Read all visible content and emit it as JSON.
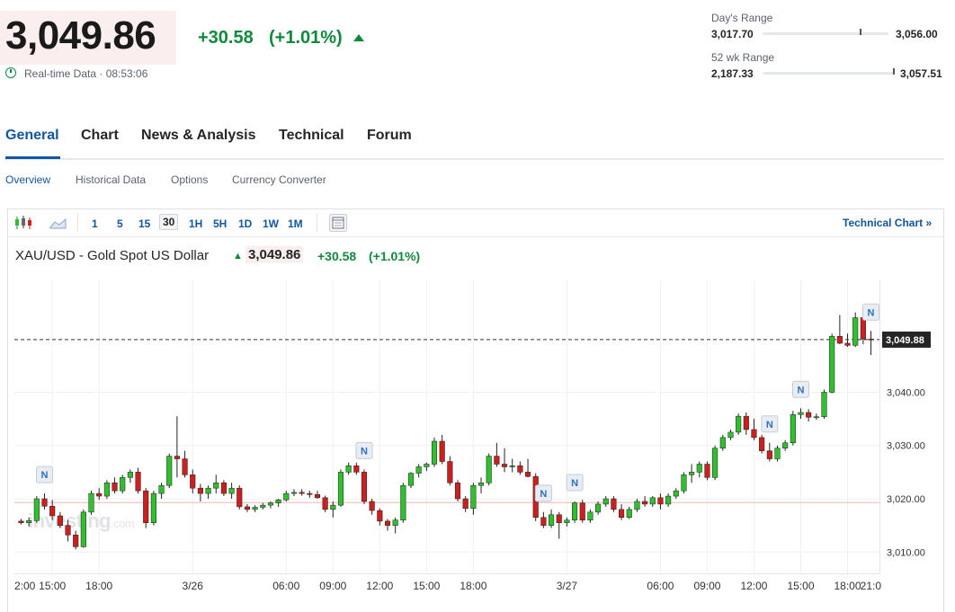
{
  "quote": {
    "price": "3,049.86",
    "change": "+30.58",
    "change_pct": "(+1.01%)",
    "realtime_label": "Real-time Data · 08:53:06",
    "days_range_label": "Day's Range",
    "days_low": "3,017.70",
    "days_high": "3,056.00",
    "days_position": 0.77,
    "wk52_label": "52 wk Range",
    "wk52_low": "2,187.33",
    "wk52_high": "3,057.51",
    "wk52_position": 0.99
  },
  "tabs": [
    "General",
    "Chart",
    "News & Analysis",
    "Technical",
    "Forum"
  ],
  "subtabs": [
    "Overview",
    "Historical Data",
    "Options",
    "Currency Converter"
  ],
  "toolbar": {
    "intervals": [
      "1",
      "5",
      "15",
      "30",
      "1H",
      "5H",
      "1D",
      "1W",
      "1M"
    ],
    "selected": "30",
    "technical_chart_link": "Technical Chart »",
    "icons": [
      "candlestick-icon",
      "area-chart-icon",
      "calendar-icon"
    ]
  },
  "chart_header": {
    "title": "XAU/USD - Gold Spot US Dollar",
    "price": "3,049.86",
    "change": "+30.58",
    "change_pct": "(+1.01%)"
  },
  "watermark": {
    "brand": "investing",
    "suffix": ".com"
  },
  "colors": {
    "up": "#2fbf2f",
    "down": "#cc1f1f",
    "accent": "#1256a0",
    "positive_text": "#0f8a3c"
  },
  "chart_data": {
    "type": "candlestick",
    "current_price_label": "3,049.88",
    "reference_line": 3019.28,
    "y_ticks": [
      "3,010.00",
      "3,020.00",
      "3,030.00",
      "3,040.00"
    ],
    "y_tick_values": [
      3010,
      3020,
      3030,
      3040
    ],
    "ylim": [
      3006,
      3061
    ],
    "x_labels": [
      {
        "i": -2,
        "label": "2:00"
      },
      {
        "i": 4,
        "label": "15:00"
      },
      {
        "i": 10,
        "label": "18:00"
      },
      {
        "i": 22,
        "label": "3/26"
      },
      {
        "i": 34,
        "label": "06:00"
      },
      {
        "i": 40,
        "label": "09:00"
      },
      {
        "i": 46,
        "label": "12:00"
      },
      {
        "i": 52,
        "label": "15:00"
      },
      {
        "i": 58,
        "label": "18:00"
      },
      {
        "i": 70,
        "label": "3/27"
      },
      {
        "i": 82,
        "label": "06:00"
      },
      {
        "i": 88,
        "label": "09:00"
      },
      {
        "i": 94,
        "label": "12:00"
      },
      {
        "i": 100,
        "label": "15:00"
      },
      {
        "i": 106,
        "label": "18:00"
      },
      {
        "i": 112,
        "label": "21:0"
      }
    ],
    "news_markers": [
      3,
      44,
      67,
      71,
      96,
      100,
      109
    ],
    "candles": [
      [
        3015.8,
        3016.2,
        3015.2,
        3015.5
      ],
      [
        3015.5,
        3016.5,
        3014.8,
        3015.9
      ],
      [
        3015.9,
        3020.5,
        3015.5,
        3020.0
      ],
      [
        3020.0,
        3021.0,
        3018.0,
        3018.6
      ],
      [
        3018.6,
        3019.8,
        3016.0,
        3016.8
      ],
      [
        3016.8,
        3017.5,
        3014.5,
        3015.0
      ],
      [
        3015.0,
        3016.0,
        3012.0,
        3013.2
      ],
      [
        3013.2,
        3014.0,
        3010.5,
        3011.0
      ],
      [
        3011.0,
        3018.0,
        3010.8,
        3017.5
      ],
      [
        3017.5,
        3021.5,
        3017.0,
        3021.0
      ],
      [
        3021.0,
        3022.0,
        3019.8,
        3020.5
      ],
      [
        3020.5,
        3023.5,
        3020.0,
        3023.0
      ],
      [
        3023.0,
        3024.0,
        3021.0,
        3021.5
      ],
      [
        3021.5,
        3024.5,
        3021.0,
        3024.0
      ],
      [
        3024.0,
        3025.5,
        3023.0,
        3025.0
      ],
      [
        3025.0,
        3025.8,
        3021.0,
        3021.5
      ],
      [
        3021.5,
        3022.0,
        3014.5,
        3015.5
      ],
      [
        3015.5,
        3021.5,
        3015.0,
        3021.0
      ],
      [
        3021.0,
        3023.0,
        3020.0,
        3022.5
      ],
      [
        3022.5,
        3028.5,
        3022.0,
        3028.0
      ],
      [
        3028.0,
        3035.5,
        3024.0,
        3027.5
      ],
      [
        3027.5,
        3029.0,
        3024.0,
        3024.5
      ],
      [
        3024.5,
        3025.5,
        3021.0,
        3022.0
      ],
      [
        3022.0,
        3022.8,
        3019.5,
        3021.0
      ],
      [
        3021.0,
        3022.5,
        3020.0,
        3022.0
      ],
      [
        3022.0,
        3024.5,
        3021.0,
        3023.0
      ],
      [
        3023.0,
        3023.5,
        3020.5,
        3021.0
      ],
      [
        3021.0,
        3023.0,
        3020.0,
        3022.0
      ],
      [
        3022.0,
        3022.5,
        3018.0,
        3018.5
      ],
      [
        3018.5,
        3019.0,
        3017.5,
        3018.0
      ],
      [
        3018.0,
        3018.8,
        3017.5,
        3018.4
      ],
      [
        3018.4,
        3019.2,
        3018.0,
        3018.8
      ],
      [
        3018.8,
        3019.5,
        3018.2,
        3019.2
      ],
      [
        3019.2,
        3020.0,
        3018.5,
        3019.8
      ],
      [
        3019.8,
        3021.5,
        3019.5,
        3021.0
      ],
      [
        3021.0,
        3021.8,
        3020.5,
        3021.2
      ],
      [
        3021.2,
        3021.8,
        3020.6,
        3021.0
      ],
      [
        3021.0,
        3021.5,
        3020.2,
        3020.8
      ],
      [
        3020.8,
        3021.5,
        3020.0,
        3020.2
      ],
      [
        3020.2,
        3020.6,
        3017.5,
        3018.0
      ],
      [
        3018.0,
        3019.5,
        3016.5,
        3018.8
      ],
      [
        3018.8,
        3025.5,
        3018.5,
        3025.0
      ],
      [
        3025.0,
        3026.8,
        3024.5,
        3026.2
      ],
      [
        3026.2,
        3026.8,
        3024.5,
        3025.0
      ],
      [
        3025.0,
        3025.5,
        3019.0,
        3019.5
      ],
      [
        3019.5,
        3020.0,
        3017.0,
        3017.8
      ],
      [
        3017.8,
        3018.2,
        3015.0,
        3015.8
      ],
      [
        3015.8,
        3016.2,
        3014.0,
        3015.0
      ],
      [
        3015.0,
        3016.5,
        3013.5,
        3016.0
      ],
      [
        3016.0,
        3023.0,
        3015.5,
        3022.5
      ],
      [
        3022.5,
        3025.0,
        3022.0,
        3024.8
      ],
      [
        3024.8,
        3026.5,
        3024.0,
        3026.0
      ],
      [
        3026.0,
        3026.8,
        3025.2,
        3026.5
      ],
      [
        3026.5,
        3031.5,
        3026.0,
        3030.8
      ],
      [
        3030.8,
        3032.0,
        3026.5,
        3027.0
      ],
      [
        3027.0,
        3028.0,
        3022.5,
        3023.0
      ],
      [
        3023.0,
        3023.5,
        3019.5,
        3020.0
      ],
      [
        3020.0,
        3020.5,
        3017.5,
        3018.2
      ],
      [
        3018.2,
        3023.0,
        3017.0,
        3022.5
      ],
      [
        3022.5,
        3024.0,
        3021.0,
        3023.0
      ],
      [
        3023.0,
        3028.5,
        3022.5,
        3028.0
      ],
      [
        3028.0,
        3030.5,
        3026.0,
        3026.5
      ],
      [
        3026.5,
        3029.5,
        3025.0,
        3026.0
      ],
      [
        3026.0,
        3027.5,
        3025.0,
        3026.2
      ],
      [
        3026.2,
        3027.0,
        3024.5,
        3025.0
      ],
      [
        3025.0,
        3027.5,
        3024.0,
        3024.2
      ],
      [
        3024.2,
        3024.8,
        3015.8,
        3016.5
      ],
      [
        3016.5,
        3017.5,
        3014.5,
        3015.0
      ],
      [
        3015.0,
        3018.0,
        3014.5,
        3017.0
      ],
      [
        3017.0,
        3017.5,
        3012.5,
        3015.5
      ],
      [
        3015.5,
        3016.5,
        3014.8,
        3016.0
      ],
      [
        3016.0,
        3019.5,
        3015.5,
        3019.2
      ],
      [
        3019.2,
        3019.8,
        3015.5,
        3016.0
      ],
      [
        3016.0,
        3018.0,
        3015.5,
        3017.5
      ],
      [
        3017.5,
        3019.5,
        3017.0,
        3019.0
      ],
      [
        3019.0,
        3020.5,
        3018.5,
        3020.0
      ],
      [
        3020.0,
        3020.5,
        3017.5,
        3018.0
      ],
      [
        3018.0,
        3019.0,
        3016.0,
        3016.5
      ],
      [
        3016.5,
        3018.5,
        3016.2,
        3018.0
      ],
      [
        3018.0,
        3020.0,
        3017.5,
        3019.5
      ],
      [
        3019.5,
        3020.5,
        3018.5,
        3019.0
      ],
      [
        3019.0,
        3020.5,
        3018.5,
        3020.2
      ],
      [
        3020.2,
        3021.0,
        3018.0,
        3019.0
      ],
      [
        3019.0,
        3021.0,
        3018.5,
        3020.5
      ],
      [
        3020.5,
        3022.0,
        3020.0,
        3021.5
      ],
      [
        3021.5,
        3025.0,
        3021.0,
        3024.5
      ],
      [
        3024.5,
        3026.5,
        3023.0,
        3025.0
      ],
      [
        3025.0,
        3027.0,
        3024.0,
        3026.5
      ],
      [
        3026.5,
        3027.0,
        3023.5,
        3024.0
      ],
      [
        3024.0,
        3030.0,
        3023.5,
        3029.5
      ],
      [
        3029.5,
        3032.0,
        3029.0,
        3031.5
      ],
      [
        3031.5,
        3033.0,
        3031.0,
        3032.5
      ],
      [
        3032.5,
        3036.0,
        3032.0,
        3035.5
      ],
      [
        3035.5,
        3036.2,
        3032.0,
        3033.0
      ],
      [
        3033.0,
        3035.0,
        3031.0,
        3031.5
      ],
      [
        3031.5,
        3032.0,
        3028.5,
        3029.0
      ],
      [
        3029.0,
        3030.5,
        3027.0,
        3027.5
      ],
      [
        3027.5,
        3030.0,
        3027.0,
        3029.5
      ],
      [
        3029.5,
        3031.0,
        3029.0,
        3030.5
      ],
      [
        3030.5,
        3036.5,
        3030.0,
        3035.8
      ],
      [
        3035.8,
        3037.0,
        3035.0,
        3036.2
      ],
      [
        3036.2,
        3036.8,
        3034.5,
        3035.3
      ],
      [
        3035.3,
        3036.0,
        3034.8,
        3035.4
      ],
      [
        3035.4,
        3040.5,
        3035.0,
        3040.0
      ],
      [
        3040.0,
        3051.0,
        3039.8,
        3050.5
      ],
      [
        3050.5,
        3054.5,
        3049.0,
        3049.2
      ],
      [
        3049.2,
        3051.0,
        3048.5,
        3048.8
      ],
      [
        3048.8,
        3055.0,
        3048.5,
        3054.0
      ],
      [
        3054.0,
        3055.0,
        3049.0,
        3050.0
      ],
      [
        3050.0,
        3051.5,
        3047.0,
        3049.88
      ]
    ]
  }
}
